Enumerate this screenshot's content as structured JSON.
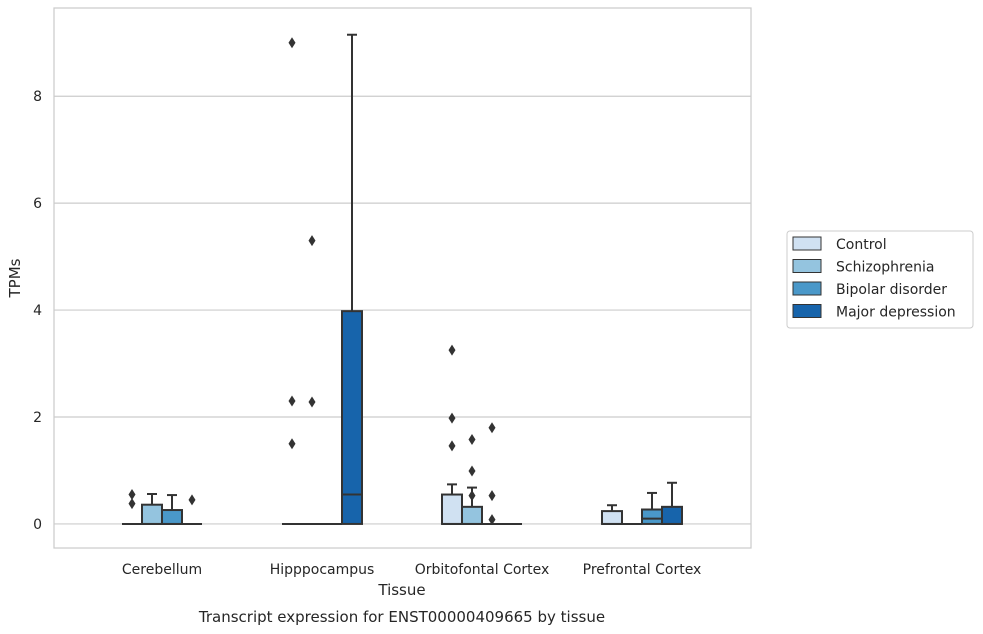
{
  "caption": "Transcript expression for ENST00000409665 by tissue",
  "chart_data": {
    "type": "box",
    "xlabel": "Tissue",
    "ylabel": "TPMs",
    "categories": [
      "Cerebellum",
      "Hipppocampus",
      "Orbitofontal Cortex",
      "Prefrontal Cortex"
    ],
    "ylim": [
      -0.45,
      9.65
    ],
    "yticks": [
      0,
      2,
      4,
      6,
      8
    ],
    "grid": true,
    "legend": {
      "position": "right",
      "entries": [
        "Control",
        "Schizophrenia",
        "Bipolar disorder",
        "Major depression"
      ]
    },
    "colors": [
      "#d0e1f2",
      "#94c4df",
      "#4a98c9",
      "#1764ab"
    ],
    "edge_color": "#333333",
    "boxes": [
      {
        "category": 0,
        "series": 0,
        "q1": 0,
        "median": 0,
        "q3": 0,
        "whislo": 0,
        "whishi": 0,
        "fliers": [
          0.55,
          0.38
        ]
      },
      {
        "category": 0,
        "series": 1,
        "q1": 0,
        "median": 0,
        "q3": 0.36,
        "whislo": 0,
        "whishi": 0.56,
        "fliers": []
      },
      {
        "category": 0,
        "series": 2,
        "q1": 0,
        "median": 0,
        "q3": 0.26,
        "whislo": 0,
        "whishi": 0.54,
        "fliers": []
      },
      {
        "category": 0,
        "series": 3,
        "q1": 0,
        "median": 0,
        "q3": 0,
        "whislo": 0,
        "whishi": 0,
        "fliers": [
          0.45
        ]
      },
      {
        "category": 1,
        "series": 0,
        "q1": 0,
        "median": 0,
        "q3": 0,
        "whislo": 0,
        "whishi": 0,
        "fliers": [
          9.0,
          2.3,
          1.5
        ]
      },
      {
        "category": 1,
        "series": 1,
        "q1": 0,
        "median": 0,
        "q3": 0,
        "whislo": 0,
        "whishi": 0,
        "fliers": [
          5.3,
          2.28
        ]
      },
      {
        "category": 1,
        "series": 2,
        "q1": 0,
        "median": 0,
        "q3": 0,
        "whislo": 0,
        "whishi": 0,
        "fliers": []
      },
      {
        "category": 1,
        "series": 3,
        "q1": 0,
        "median": 0.55,
        "q3": 3.98,
        "whislo": 0,
        "whishi": 9.15,
        "fliers": []
      },
      {
        "category": 2,
        "series": 0,
        "q1": 0,
        "median": 0,
        "q3": 0.55,
        "whislo": 0,
        "whishi": 0.74,
        "fliers": [
          3.25,
          1.98,
          1.46
        ]
      },
      {
        "category": 2,
        "series": 1,
        "q1": 0,
        "median": 0,
        "q3": 0.32,
        "whislo": 0,
        "whishi": 0.68,
        "fliers": [
          1.58,
          0.99,
          0.53
        ]
      },
      {
        "category": 2,
        "series": 2,
        "q1": 0,
        "median": 0,
        "q3": 0,
        "whislo": 0,
        "whishi": 0,
        "fliers": [
          1.8,
          0.53,
          0.08
        ]
      },
      {
        "category": 2,
        "series": 3,
        "q1": 0,
        "median": 0,
        "q3": 0,
        "whislo": 0,
        "whishi": 0,
        "fliers": []
      },
      {
        "category": 3,
        "series": 0,
        "q1": 0,
        "median": 0,
        "q3": 0.24,
        "whislo": 0,
        "whishi": 0.35,
        "fliers": []
      },
      {
        "category": 3,
        "series": 1,
        "q1": 0,
        "median": 0,
        "q3": 0,
        "whislo": 0,
        "whishi": 0,
        "fliers": []
      },
      {
        "category": 3,
        "series": 2,
        "q1": 0,
        "median": 0.1,
        "q3": 0.27,
        "whislo": 0,
        "whishi": 0.58,
        "fliers": []
      },
      {
        "category": 3,
        "series": 3,
        "q1": 0,
        "median": 0,
        "q3": 0.32,
        "whislo": 0,
        "whishi": 0.77,
        "fliers": []
      }
    ]
  }
}
